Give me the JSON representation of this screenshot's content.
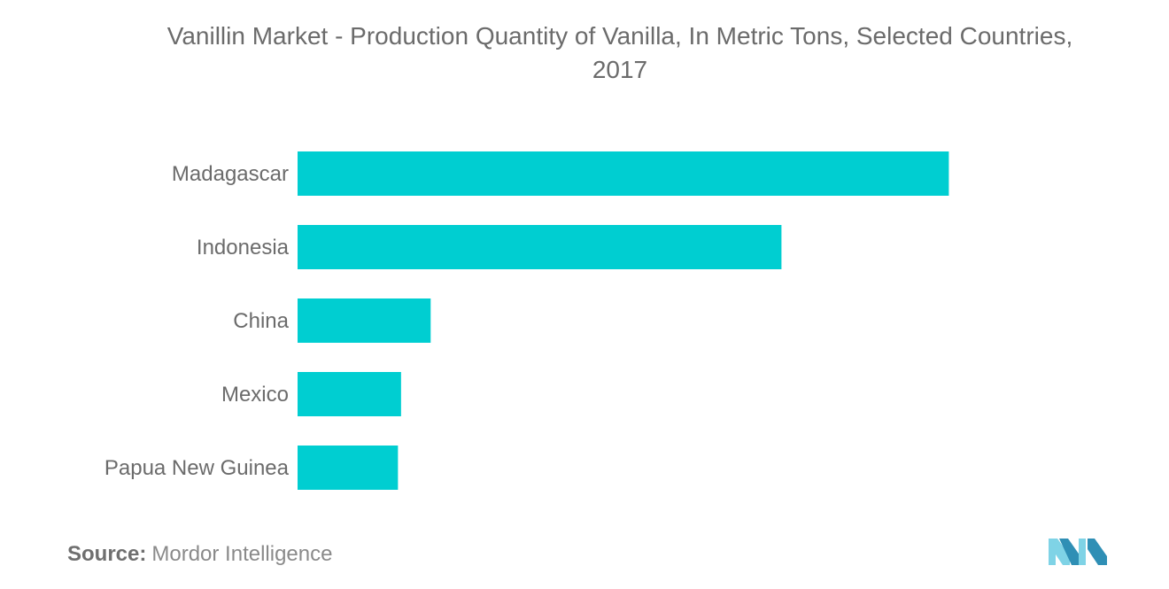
{
  "title_line1": "Vanillin Market - Production Quantity of Vanilla, In Metric Tons, Selected Countries,",
  "title_line2": "2017",
  "source": {
    "label": "Source:",
    "text": "Mordor Intelligence"
  },
  "colors": {
    "bar": "#00CED1",
    "text": "#6b6b6b",
    "logo_light": "#7fd3e6",
    "logo_dark": "#2f8fb5"
  },
  "logo_icon": "mordor-intelligence-logo",
  "chart_data": {
    "type": "bar",
    "orientation": "horizontal",
    "title": "Vanillin Market - Production Quantity of Vanilla, In Metric Tons, Selected Countries, 2017",
    "categories": [
      "Madagascar",
      "Indonesia",
      "China",
      "Mexico",
      "Papua New Guinea"
    ],
    "values": [
      2926,
      2174,
      598,
      465,
      451
    ],
    "xlim": [
      0,
      3000
    ],
    "grid": false,
    "legend": "none"
  }
}
